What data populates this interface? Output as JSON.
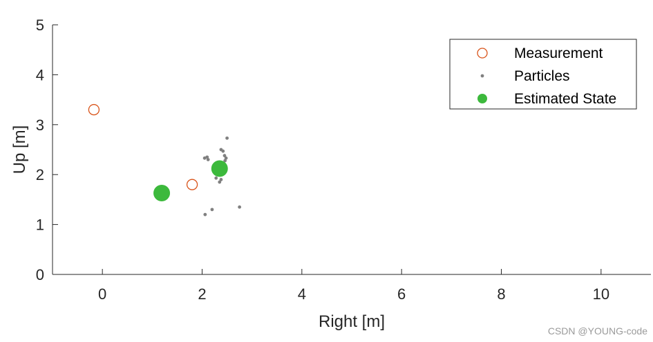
{
  "chart_data": {
    "type": "scatter",
    "xlabel": "Right [m]",
    "ylabel": "Up [m]",
    "xlim": [
      -1,
      11
    ],
    "ylim": [
      0,
      5
    ],
    "xticks": [
      0,
      2,
      4,
      6,
      8,
      10
    ],
    "yticks": [
      0,
      1,
      2,
      3,
      4,
      5
    ],
    "grid": false,
    "legend_position": "top-right",
    "series": [
      {
        "name": "Measurement",
        "marker": "open-circle",
        "color": "#D95319",
        "points": [
          [
            -0.17,
            3.3
          ],
          [
            1.8,
            1.8
          ]
        ]
      },
      {
        "name": "Particles",
        "marker": "dot",
        "color": "#808080",
        "points": [
          [
            2.5,
            2.73
          ],
          [
            2.38,
            2.5
          ],
          [
            2.42,
            2.47
          ],
          [
            2.45,
            2.38
          ],
          [
            2.48,
            2.33
          ],
          [
            2.46,
            2.28
          ],
          [
            2.05,
            2.33
          ],
          [
            2.1,
            2.35
          ],
          [
            2.12,
            2.3
          ],
          [
            2.3,
            2.12
          ],
          [
            2.4,
            2.05
          ],
          [
            2.28,
            1.93
          ],
          [
            2.38,
            1.9
          ],
          [
            2.35,
            1.85
          ],
          [
            2.2,
            1.3
          ],
          [
            2.06,
            1.2
          ],
          [
            2.75,
            1.35
          ],
          [
            2.42,
            2.2
          ]
        ]
      },
      {
        "name": "Estimated State",
        "marker": "filled-circle",
        "color": "#3CB93C",
        "points": [
          [
            1.19,
            1.63
          ],
          [
            2.35,
            2.12
          ]
        ]
      }
    ]
  },
  "watermark": "CSDN @YOUNG-code"
}
